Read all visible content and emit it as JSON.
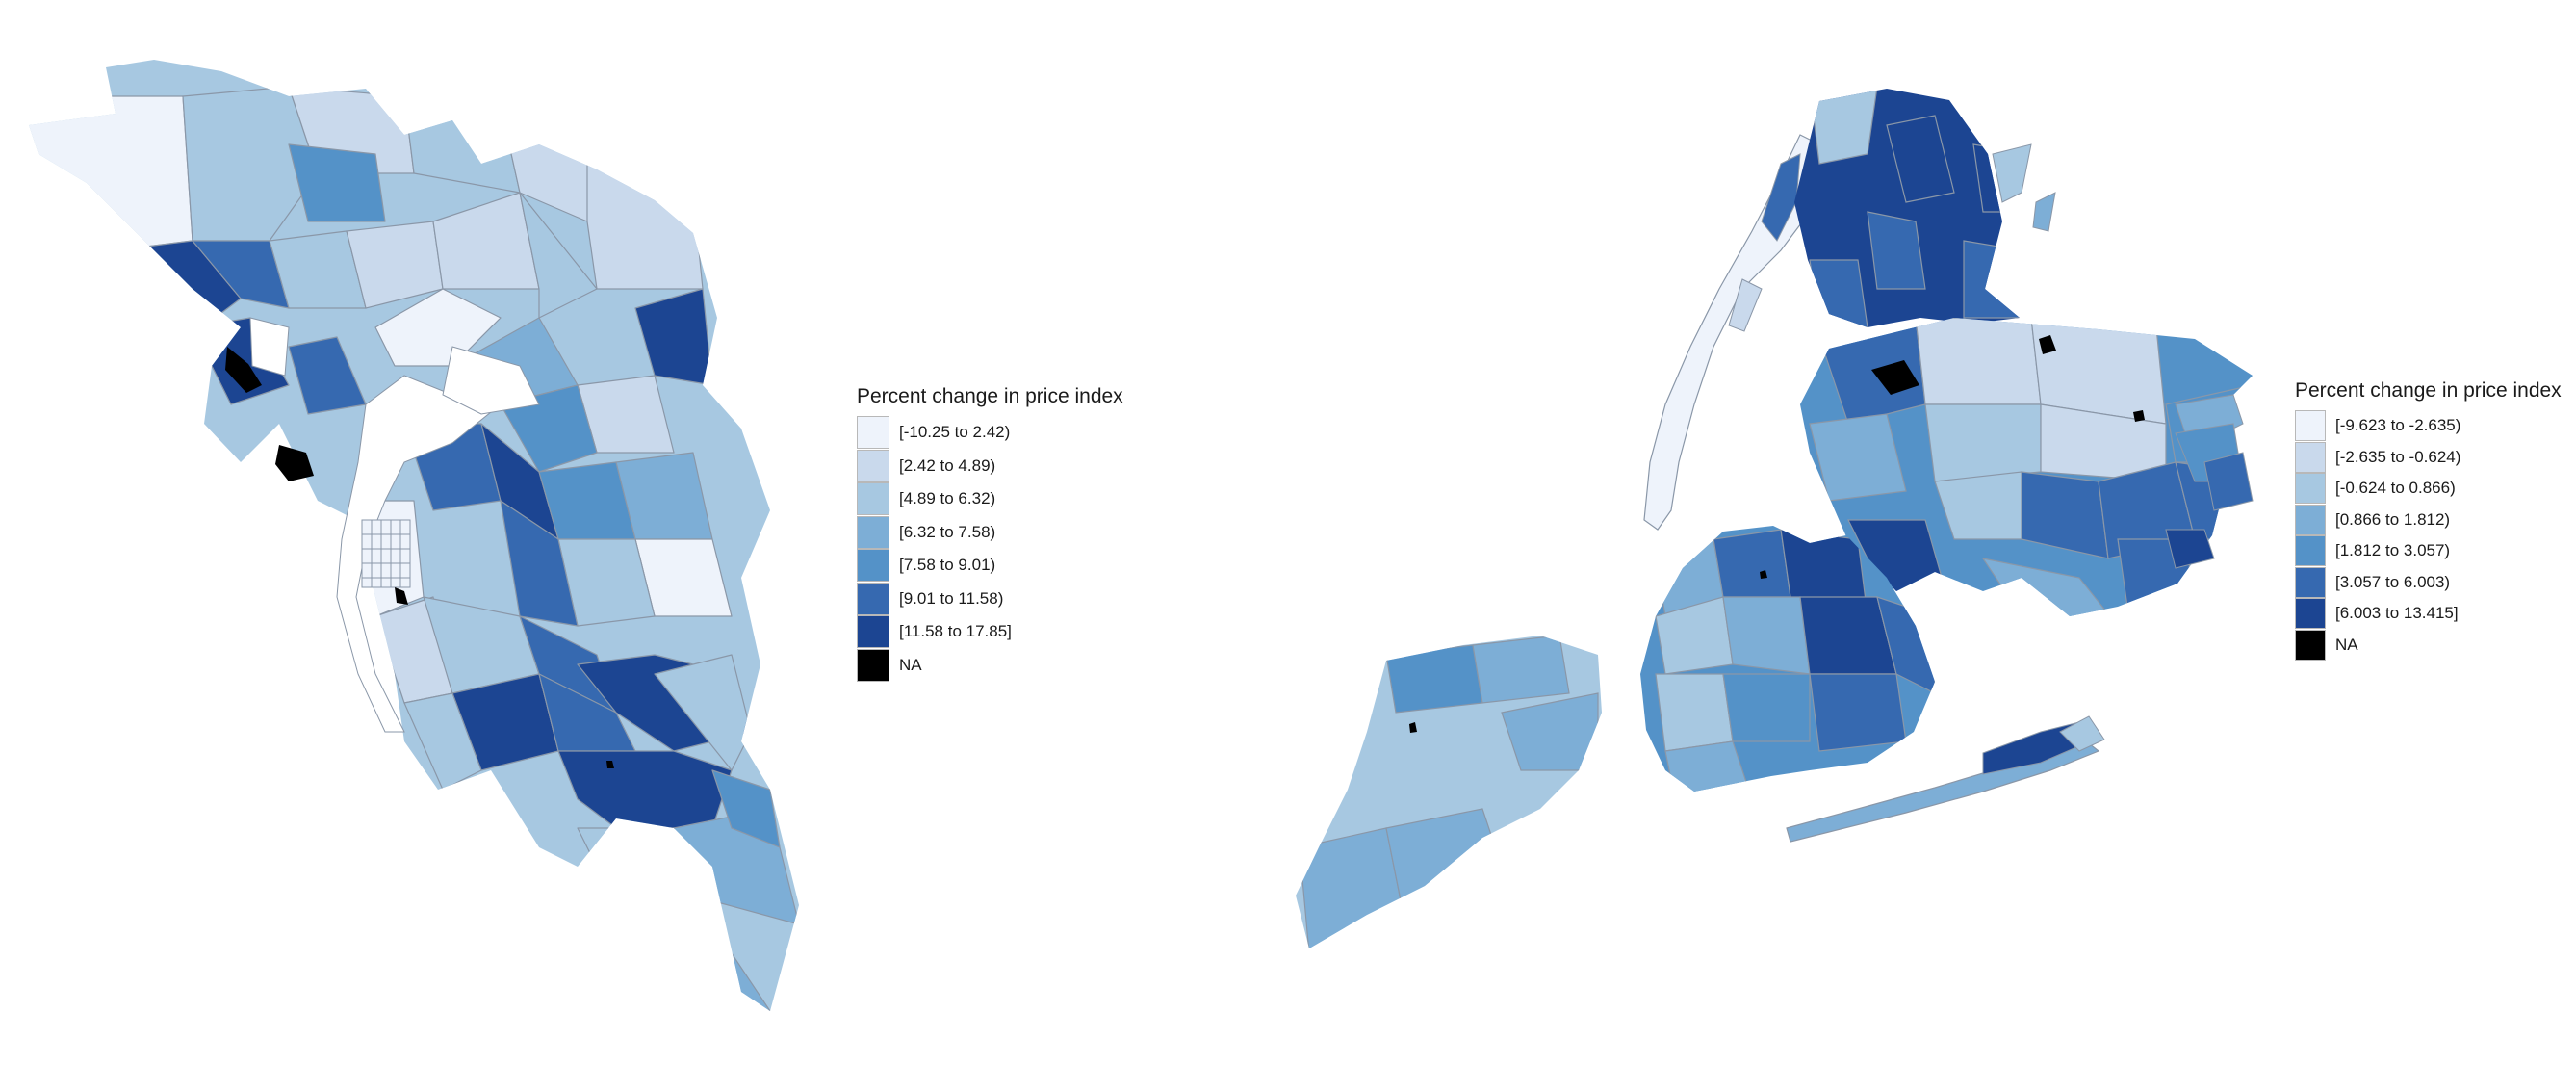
{
  "maps": [
    {
      "region": "bay-area",
      "legend": {
        "title": "Percent change in price index",
        "items": [
          {
            "label": "[-10.25 to 2.42)",
            "color": "#eef3fb"
          },
          {
            "label": "[2.42 to 4.89)",
            "color": "#c9d9ec"
          },
          {
            "label": "[4.89 to 6.32)",
            "color": "#a7c8e1"
          },
          {
            "label": "[6.32 to 7.58)",
            "color": "#7daed6"
          },
          {
            "label": "[7.58 to 9.01)",
            "color": "#5492c8"
          },
          {
            "label": "[9.01 to 11.58)",
            "color": "#3669b0"
          },
          {
            "label": "[11.58 to 17.85]",
            "color": "#1c4592"
          },
          {
            "label": "NA",
            "color": "#000000"
          }
        ]
      }
    },
    {
      "region": "new-york-city",
      "legend": {
        "title": "Percent change in price index",
        "items": [
          {
            "label": "[-9.623 to -2.635)",
            "color": "#eef3fb"
          },
          {
            "label": "[-2.635 to -0.624)",
            "color": "#c9d9ec"
          },
          {
            "label": "[-0.624 to 0.866)",
            "color": "#a7c8e1"
          },
          {
            "label": "[0.866 to 1.812)",
            "color": "#7daed6"
          },
          {
            "label": "[1.812 to 3.057)",
            "color": "#5492c8"
          },
          {
            "label": "[3.057 to 6.003)",
            "color": "#3669b0"
          },
          {
            "label": "[6.003 to 13.415]",
            "color": "#1c4592"
          },
          {
            "label": "NA",
            "color": "#000000"
          }
        ]
      }
    }
  ]
}
